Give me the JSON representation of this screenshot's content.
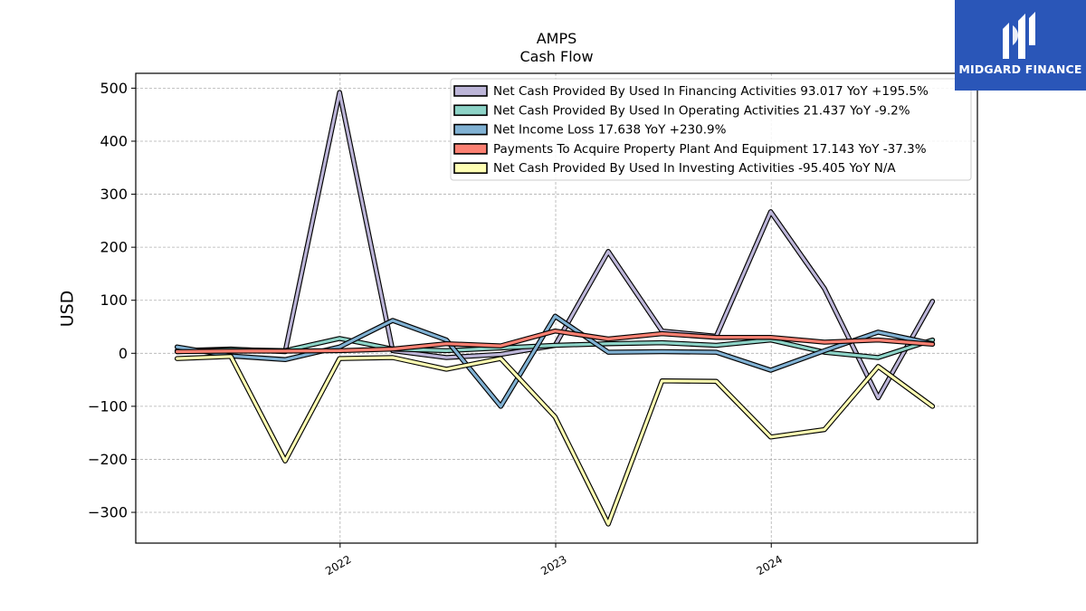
{
  "brand": {
    "name": "MIDGARD FINANCE",
    "logo_icon": "midgard-logo-icon",
    "background": "#2a56b8"
  },
  "chart_data": {
    "type": "line",
    "title": "AMPS",
    "subtitle": "Cash Flow",
    "xlabel": "",
    "ylabel": "USD",
    "ylim": [
      -358,
      528
    ],
    "yticks": [
      500,
      400,
      300,
      200,
      100,
      0,
      -100,
      -200,
      -300
    ],
    "ytick_labels": [
      "500",
      "400",
      "300",
      "200",
      "100",
      "0",
      "−100",
      "−200",
      "−300"
    ],
    "xlim": [
      "2021-01-20",
      "2024-12-15"
    ],
    "xticks": [
      "2022-01-01",
      "2023-01-01",
      "2024-01-01"
    ],
    "xtick_labels": [
      "2022",
      "2023",
      "2024"
    ],
    "x": [
      "2021-03-31",
      "2021-06-30",
      "2021-09-30",
      "2021-12-31",
      "2022-03-31",
      "2022-06-30",
      "2022-09-30",
      "2022-12-31",
      "2023-03-31",
      "2023-06-30",
      "2023-09-30",
      "2023-12-31",
      "2024-03-31",
      "2024-06-30",
      "2024-09-30"
    ],
    "grid": true,
    "legend_position": "top-right",
    "series": [
      {
        "name": "Net Cash Provided By Used In Financing Activities",
        "legend": "Net Cash Provided By Used In Financing Activities  93.017 YoY +195.5%",
        "color": "#bcb5d8",
        "values": [
          5,
          8,
          3,
          492,
          5,
          -8,
          -2,
          15,
          192,
          42,
          32,
          267,
          122,
          -84,
          98
        ]
      },
      {
        "name": "Net Cash Provided By Used In Operating Activities",
        "legend": "Net Cash Provided By Used In Operating Activities  21.437 YoY -9.2%",
        "color": "#8dd3c7",
        "values": [
          3,
          7,
          5,
          28,
          8,
          5,
          10,
          15,
          18,
          20,
          15,
          25,
          2,
          -8,
          25
        ]
      },
      {
        "name": "Net Income Loss",
        "legend": "Net Income Loss  17.638 YoY +230.9%",
        "color": "#80b1d3",
        "values": [
          12,
          -5,
          -12,
          12,
          62,
          25,
          -100,
          70,
          2,
          3,
          2,
          -32,
          5,
          40,
          18
        ]
      },
      {
        "name": "Payments To Acquire Property Plant And Equipment",
        "legend": "Payments To Acquire Property Plant And Equipment  17.143 YoY -37.3%",
        "color": "#fb8072",
        "values": [
          3,
          4,
          4,
          5,
          8,
          18,
          14,
          42,
          27,
          37,
          30,
          30,
          21,
          25,
          17
        ]
      },
      {
        "name": "Net Cash Provided By Used In Investing Activities",
        "legend": "Net Cash Provided By Used In Investing Activities  -95.405 YoY N/A",
        "color": "#ffffb3",
        "values": [
          -10,
          -6,
          -203,
          -10,
          -8,
          -30,
          -10,
          -120,
          -322,
          -52,
          -53,
          -158,
          -144,
          -25,
          -100
        ]
      }
    ]
  }
}
